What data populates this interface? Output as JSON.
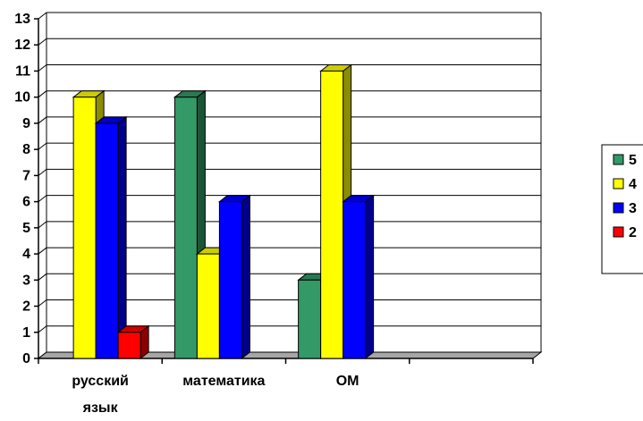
{
  "chart_data": {
    "type": "bar",
    "categories": [
      [
        "русский",
        "язык"
      ],
      [
        "математика"
      ],
      [
        "ОМ"
      ],
      [
        ""
      ]
    ],
    "series": [
      {
        "name": "5",
        "color": "#339966",
        "values": [
          0,
          10,
          3,
          0
        ]
      },
      {
        "name": "4",
        "color": "#ffff00",
        "values": [
          10,
          4,
          11,
          0
        ]
      },
      {
        "name": "3",
        "color": "#0000ff",
        "values": [
          9,
          6,
          6,
          0
        ]
      },
      {
        "name": "2",
        "color": "#ff0000",
        "values": [
          1,
          0,
          0,
          0
        ]
      }
    ],
    "yticks": [
      "0",
      "1",
      "2",
      "3",
      "4",
      "5",
      "6",
      "7",
      "8",
      "9",
      "10",
      "11",
      "12",
      "13"
    ],
    "ylim": [
      0,
      13
    ],
    "grid": true,
    "legend_position": "right",
    "style": "3d-clustered-column"
  }
}
